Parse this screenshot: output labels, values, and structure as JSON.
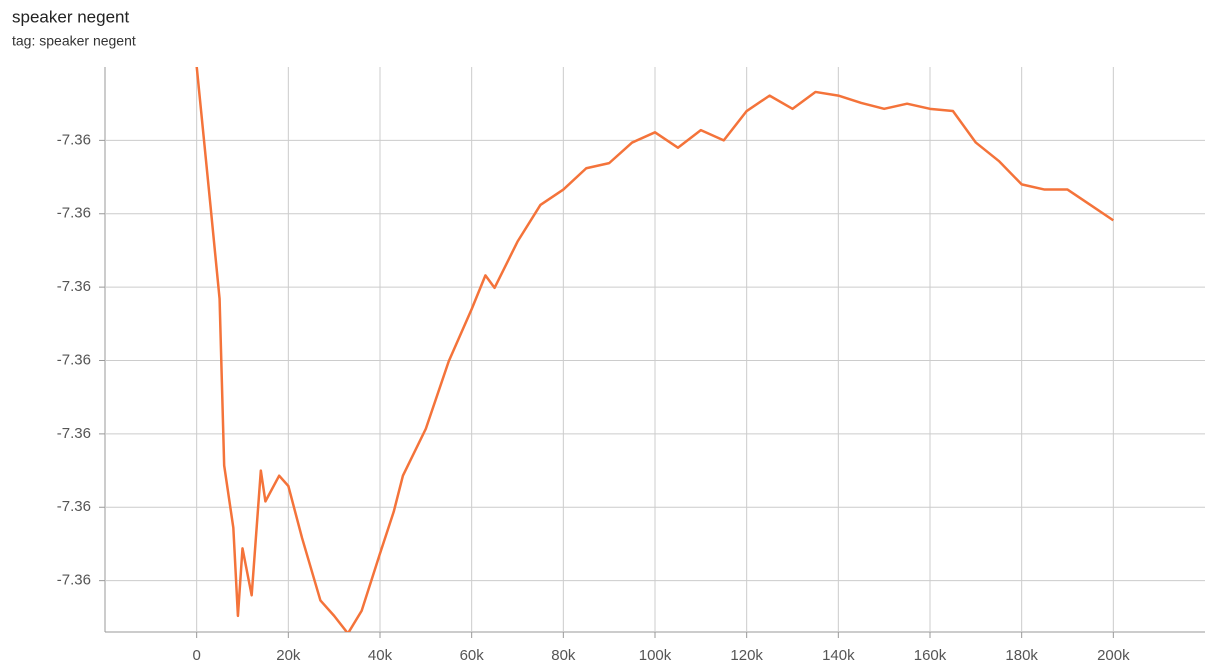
{
  "chart_data": {
    "type": "line",
    "title": "speaker negent",
    "subtitle": "tag: speaker negent",
    "xlim": [
      -20000,
      220000
    ],
    "xticks": [
      {
        "value": 0,
        "label": "0"
      },
      {
        "value": 20000,
        "label": "20k"
      },
      {
        "value": 40000,
        "label": "40k"
      },
      {
        "value": 60000,
        "label": "60k"
      },
      {
        "value": 80000,
        "label": "80k"
      },
      {
        "value": 100000,
        "label": "100k"
      },
      {
        "value": 120000,
        "label": "120k"
      },
      {
        "value": 140000,
        "label": "140k"
      },
      {
        "value": 160000,
        "label": "160k"
      },
      {
        "value": 180000,
        "label": "180k"
      },
      {
        "value": 200000,
        "label": "200k"
      }
    ],
    "ylim": [
      -7.3637,
      -7.356
    ],
    "yticks": [
      {
        "value": -7.357,
        "label": "-7.36"
      },
      {
        "value": -7.358,
        "label": "-7.36"
      },
      {
        "value": -7.359,
        "label": "-7.36"
      },
      {
        "value": -7.36,
        "label": "-7.36"
      },
      {
        "value": -7.361,
        "label": "-7.36"
      },
      {
        "value": -7.362,
        "label": "-7.36"
      },
      {
        "value": -7.363,
        "label": "-7.36"
      }
    ],
    "grid": true,
    "series": [
      {
        "color": "#f4733a",
        "x": [
          0,
          3000,
          5000,
          6000,
          8000,
          9000,
          10000,
          12000,
          14000,
          15000,
          18000,
          20000,
          23000,
          27000,
          30000,
          33000,
          36000,
          40000,
          43000,
          45000,
          50000,
          55000,
          60000,
          63000,
          65000,
          70000,
          75000,
          80000,
          85000,
          90000,
          95000,
          100000,
          105000,
          110000,
          115000,
          120000,
          125000,
          130000,
          135000,
          140000,
          145000,
          150000,
          155000,
          160000,
          165000,
          170000,
          175000,
          180000,
          185000,
          190000,
          195000,
          200000
        ],
        "values": [
          -7.35599,
          -7.35788,
          -7.35916,
          -7.36143,
          -7.36228,
          -7.36348,
          -7.36256,
          -7.3632,
          -7.3615,
          -7.36192,
          -7.36157,
          -7.36171,
          -7.36242,
          -7.36327,
          -7.36348,
          -7.36372,
          -7.36341,
          -7.36263,
          -7.36206,
          -7.36157,
          -7.36093,
          -7.36001,
          -7.3593,
          -7.35884,
          -7.35901,
          -7.35838,
          -7.35788,
          -7.35767,
          -7.35738,
          -7.35731,
          -7.35703,
          -7.35689,
          -7.3571,
          -7.35686,
          -7.357,
          -7.3566,
          -7.35639,
          -7.35657,
          -7.35634,
          -7.35639,
          -7.35649,
          -7.35657,
          -7.3565,
          -7.35657,
          -7.3566,
          -7.35703,
          -7.35728,
          -7.3576,
          -7.35767,
          -7.35767,
          -7.35788,
          -7.35809
        ]
      }
    ]
  }
}
